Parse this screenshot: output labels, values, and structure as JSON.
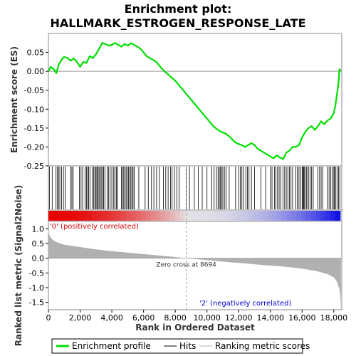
{
  "chart_data": {
    "type": "line",
    "title_line1": "Enrichment plot:",
    "title_line2": "HALLMARK_ESTROGEN_RESPONSE_LATE",
    "xlabel": "Rank in Ordered Dataset",
    "xlim": [
      0,
      18500
    ],
    "x_ticks": [
      0,
      2000,
      4000,
      6000,
      8000,
      10000,
      12000,
      14000,
      16000,
      18000
    ],
    "x_tick_labels": [
      "0",
      "2,000",
      "4,000",
      "6,000",
      "8,000",
      "10,000",
      "12,000",
      "14,000",
      "16,000",
      "18,000"
    ],
    "es_panel": {
      "ylabel": "Enrichment score (ES)",
      "ylim": [
        -0.25,
        0.1
      ],
      "y_ticks": [
        0.05,
        0.0,
        -0.05,
        -0.1,
        -0.15,
        -0.2,
        -0.25
      ],
      "y_tick_labels": [
        "0.05",
        "0.00",
        "-0.05",
        "-0.10",
        "-0.15",
        "-0.20",
        "-0.25"
      ],
      "series_name": "Enrichment profile",
      "color": "#00dd00",
      "points": [
        [
          0,
          0.0
        ],
        [
          150,
          0.012
        ],
        [
          350,
          0.005
        ],
        [
          500,
          -0.005
        ],
        [
          650,
          0.018
        ],
        [
          850,
          0.032
        ],
        [
          1000,
          0.038
        ],
        [
          1200,
          0.035
        ],
        [
          1400,
          0.028
        ],
        [
          1600,
          0.034
        ],
        [
          1800,
          0.025
        ],
        [
          2000,
          0.012
        ],
        [
          2200,
          0.025
        ],
        [
          2400,
          0.022
        ],
        [
          2600,
          0.04
        ],
        [
          2800,
          0.035
        ],
        [
          3000,
          0.045
        ],
        [
          3200,
          0.06
        ],
        [
          3400,
          0.075
        ],
        [
          3600,
          0.072
        ],
        [
          3800,
          0.068
        ],
        [
          4000,
          0.07
        ],
        [
          4200,
          0.075
        ],
        [
          4400,
          0.07
        ],
        [
          4600,
          0.065
        ],
        [
          4800,
          0.072
        ],
        [
          5000,
          0.068
        ],
        [
          5200,
          0.074
        ],
        [
          5400,
          0.07
        ],
        [
          5600,
          0.065
        ],
        [
          5800,
          0.06
        ],
        [
          6000,
          0.05
        ],
        [
          6200,
          0.04
        ],
        [
          6400,
          0.035
        ],
        [
          6600,
          0.03
        ],
        [
          6800,
          0.025
        ],
        [
          7000,
          0.015
        ],
        [
          7200,
          0.005
        ],
        [
          7400,
          -0.003
        ],
        [
          7600,
          -0.01
        ],
        [
          7800,
          -0.018
        ],
        [
          8000,
          -0.025
        ],
        [
          8200,
          -0.035
        ],
        [
          8400,
          -0.045
        ],
        [
          8600,
          -0.055
        ],
        [
          8800,
          -0.065
        ],
        [
          9000,
          -0.075
        ],
        [
          9200,
          -0.085
        ],
        [
          9400,
          -0.095
        ],
        [
          9600,
          -0.105
        ],
        [
          9800,
          -0.115
        ],
        [
          10000,
          -0.125
        ],
        [
          10200,
          -0.135
        ],
        [
          10400,
          -0.145
        ],
        [
          10600,
          -0.152
        ],
        [
          10800,
          -0.158
        ],
        [
          11000,
          -0.162
        ],
        [
          11200,
          -0.165
        ],
        [
          11400,
          -0.172
        ],
        [
          11600,
          -0.18
        ],
        [
          11800,
          -0.188
        ],
        [
          12000,
          -0.192
        ],
        [
          12200,
          -0.195
        ],
        [
          12400,
          -0.2
        ],
        [
          12600,
          -0.195
        ],
        [
          12800,
          -0.19
        ],
        [
          13000,
          -0.195
        ],
        [
          13200,
          -0.205
        ],
        [
          13400,
          -0.21
        ],
        [
          13600,
          -0.215
        ],
        [
          13800,
          -0.22
        ],
        [
          14000,
          -0.225
        ],
        [
          14200,
          -0.23
        ],
        [
          14400,
          -0.222
        ],
        [
          14600,
          -0.228
        ],
        [
          14800,
          -0.232
        ],
        [
          15000,
          -0.215
        ],
        [
          15200,
          -0.21
        ],
        [
          15400,
          -0.2
        ],
        [
          15600,
          -0.2
        ],
        [
          15800,
          -0.195
        ],
        [
          16000,
          -0.175
        ],
        [
          16200,
          -0.16
        ],
        [
          16400,
          -0.15
        ],
        [
          16600,
          -0.145
        ],
        [
          16800,
          -0.155
        ],
        [
          17000,
          -0.145
        ],
        [
          17200,
          -0.132
        ],
        [
          17400,
          -0.14
        ],
        [
          17600,
          -0.13
        ],
        [
          17800,
          -0.125
        ],
        [
          18000,
          -0.11
        ],
        [
          18100,
          -0.09
        ],
        [
          18200,
          -0.06
        ],
        [
          18300,
          -0.03
        ],
        [
          18350,
          0.005
        ],
        [
          18450,
          0.002
        ]
      ]
    },
    "hits_panel": {
      "series_name": "Hits",
      "color": "#000000",
      "hit_ranks": [
        70,
        240,
        480,
        560,
        650,
        720,
        830,
        950,
        1060,
        1400,
        1480,
        1560,
        1950,
        2060,
        2160,
        2310,
        2400,
        2480,
        2540,
        2620,
        2780,
        2860,
        2930,
        3000,
        3060,
        3120,
        3190,
        3260,
        3330,
        3420,
        3480,
        3560,
        3700,
        3800,
        3900,
        4000,
        4120,
        4200,
        4290,
        4360,
        4600,
        4680,
        4750,
        4820,
        4900,
        4980,
        5050,
        5130,
        5200,
        5270,
        5340,
        5420,
        5700,
        6100,
        6300,
        6500,
        6650,
        6820,
        7000,
        7250,
        7400,
        7550,
        7700,
        7800,
        7950,
        8100,
        8250,
        8700,
        8900,
        9200,
        9450,
        9700,
        10000,
        10300,
        10450,
        10600,
        10700,
        10780,
        10850,
        10930,
        11000,
        11100,
        11200,
        11400,
        11800,
        12000,
        12100,
        12200,
        12300,
        12450,
        12550,
        12650,
        12800,
        13000,
        13400,
        13700,
        14000,
        14100,
        14250,
        14350,
        14450,
        14550,
        14650,
        14800,
        14900,
        15000,
        15100,
        15200,
        15300,
        15400,
        15600,
        15700,
        15800,
        15900,
        16000,
        16050,
        16100,
        16150,
        16250,
        16300,
        16400,
        16500,
        16600,
        16700,
        17000,
        17100,
        17200,
        17300,
        17600,
        17700,
        17800,
        17900,
        18000,
        18050,
        18100,
        18200,
        18300,
        18380
      ]
    },
    "color_bar": {
      "label_pos": "'0' (positively correlated)",
      "label_neg": "'2' (negatively correlated)",
      "pos_color": "#dd0000",
      "neg_color": "#0000dd"
    },
    "metric_panel": {
      "ylabel": "Ranked list metric (Signal2Noise)",
      "ylim": [
        -1.75,
        1.25
      ],
      "y_ticks": [
        1.0,
        0.5,
        0.0,
        -0.5,
        -1.0,
        -1.5
      ],
      "y_tick_labels": [
        "1.0",
        "0.5",
        "0.0",
        "-0.5",
        "-1.0",
        "-1.5"
      ],
      "series_name": "Ranking metric scores",
      "color": "#b0b0b0",
      "zero_cross_rank": 8694,
      "zero_cross_label": "Zero cross at 8694",
      "points": [
        [
          0,
          0.95
        ],
        [
          50,
          0.8
        ],
        [
          200,
          0.65
        ],
        [
          500,
          0.55
        ],
        [
          1000,
          0.46
        ],
        [
          2000,
          0.38
        ],
        [
          3000,
          0.3
        ],
        [
          4000,
          0.24
        ],
        [
          5000,
          0.19
        ],
        [
          6000,
          0.14
        ],
        [
          7000,
          0.09
        ],
        [
          8000,
          0.04
        ],
        [
          8694,
          0.0
        ],
        [
          9500,
          -0.04
        ],
        [
          10500,
          -0.09
        ],
        [
          11500,
          -0.14
        ],
        [
          12500,
          -0.18
        ],
        [
          13500,
          -0.23
        ],
        [
          14500,
          -0.27
        ],
        [
          15500,
          -0.32
        ],
        [
          16300,
          -0.38
        ],
        [
          17000,
          -0.45
        ],
        [
          17600,
          -0.54
        ],
        [
          18000,
          -0.65
        ],
        [
          18200,
          -0.8
        ],
        [
          18350,
          -1.05
        ],
        [
          18420,
          -1.4
        ],
        [
          18450,
          -1.72
        ]
      ]
    },
    "legend": {
      "items": [
        "Enrichment profile",
        "Hits",
        "Ranking metric scores"
      ],
      "colors": [
        "#00dd00",
        "#000000",
        "#b0b0b0"
      ]
    }
  }
}
